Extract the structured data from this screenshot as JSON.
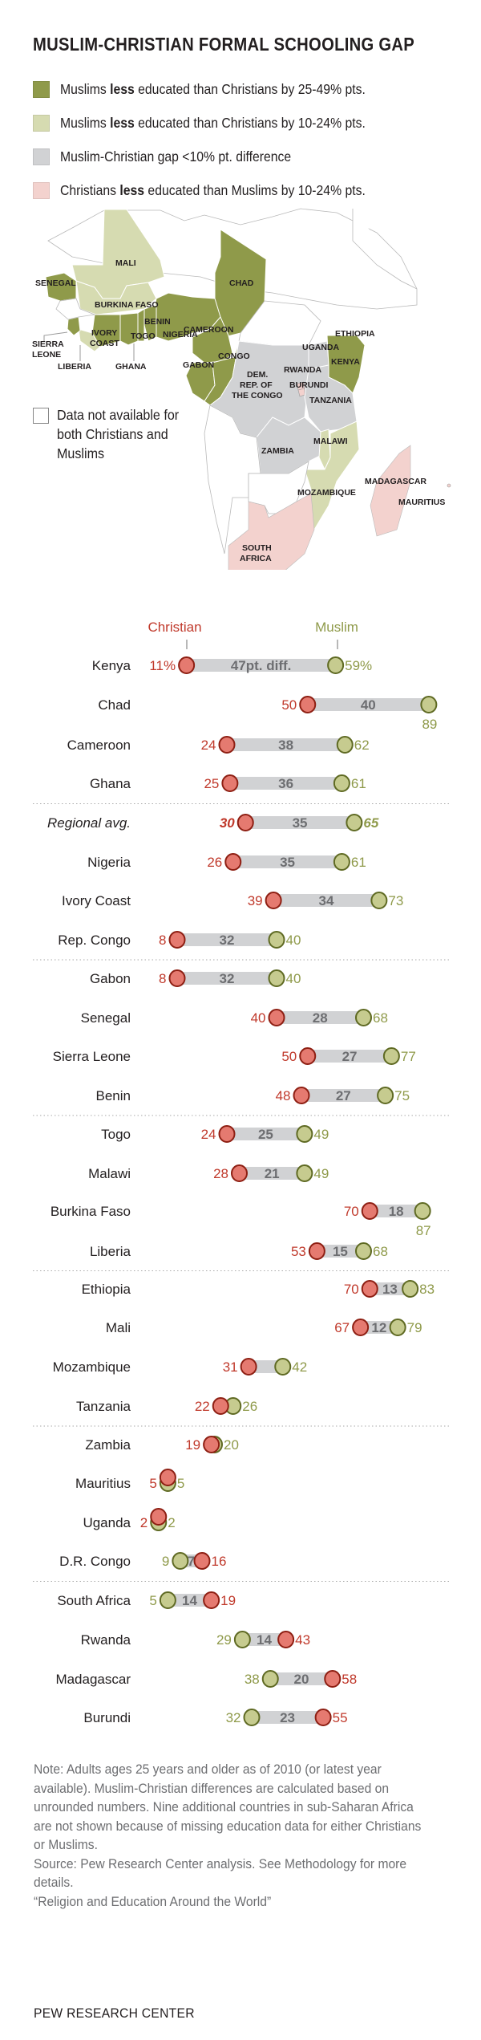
{
  "title": "MUSLIM-CHRISTIAN FORMAL SCHOOLING GAP",
  "colors": {
    "muslim_less_25_49": "#8f9a4a",
    "muslim_less_10_24": "#d6dbb1",
    "gap_under_10": "#d1d2d4",
    "christian_less_10_24": "#f3d2ce",
    "no_data": "#ffffff",
    "christian_dot_fill": "#e57a70",
    "christian_dot_stroke": "#8e1f13",
    "christian_text": "#c0392b",
    "muslim_dot_fill": "#c6cb8f",
    "muslim_dot_stroke": "#5f6a23",
    "muslim_text": "#8f9a4a",
    "bar": "#d1d2d4",
    "diff_text": "#6d6e71"
  },
  "legend": [
    {
      "pre": "Muslims ",
      "bold": "less",
      "post": " educated than Christians by 25-49% pts.",
      "color_key": "muslim_less_25_49"
    },
    {
      "pre": "Muslims ",
      "bold": "less",
      "post": " educated than Christians by 10-24% pts.",
      "color_key": "muslim_less_10_24"
    },
    {
      "pre": "Muslim-Christian gap <10% pt. difference",
      "bold": "",
      "post": "",
      "color_key": "gap_under_10"
    },
    {
      "pre": "Christians ",
      "bold": "less",
      "post": " educated than Muslims by 10-24% pts.",
      "color_key": "christian_less_10_24"
    }
  ],
  "no_data_legend": "Data not available for both Christians and Muslims",
  "map_labels": {
    "mali": "MALI",
    "senegal": "SENEGAL",
    "chad": "CHAD",
    "burkina_faso": "BURKINA FASO",
    "benin": "BENIN",
    "ivory": "IVORY",
    "coast": "COAST",
    "togo": "TOGO",
    "nigeria": "NIGERIA",
    "ethiopia": "ETHIOPIA",
    "sierra": "SIERRA",
    "leone": "LEONE",
    "liberia": "LIBERIA",
    "ghana": "GHANA",
    "cameroon": "CAMEROON",
    "congo": "CONGO",
    "gabon": "GABON",
    "uganda": "UGANDA",
    "kenya": "KENYA",
    "dem": "DEM.",
    "rep_of": "REP. OF",
    "the_congo": "THE CONGO",
    "rwanda": "RWANDA",
    "burundi": "BURUNDI",
    "tanzania": "TANZANIA",
    "zambia": "ZAMBIA",
    "malawi": "MALAWI",
    "mozambique": "MOZAMBIQUE",
    "madagascar": "MADAGASCAR",
    "mauritius": "MAURITIUS",
    "south": "SOUTH",
    "africa": "AFRICA"
  },
  "chart_data": {
    "type": "dot",
    "title": "MUSLIM-CHRISTIAN FORMAL SCHOOLING GAP",
    "series_labels": {
      "christian": "Christian",
      "muslim": "Muslim"
    },
    "value_unit": "% of adults with formal schooling",
    "xlim": [
      0,
      100
    ],
    "diff_suffix_first": "pt. diff.",
    "rows": [
      {
        "country": "Kenya",
        "christian": 11,
        "muslim": 59,
        "diff": 47,
        "first": true
      },
      {
        "country": "Chad",
        "christian": 50,
        "muslim": 89,
        "diff": 40,
        "muslim_label_below": true
      },
      {
        "country": "Cameroon",
        "christian": 24,
        "muslim": 62,
        "diff": 38
      },
      {
        "country": "Ghana",
        "christian": 25,
        "muslim": 61,
        "diff": 36,
        "divider_after": true
      },
      {
        "country": "Regional avg.",
        "christian": 30,
        "muslim": 65,
        "diff": 35,
        "italic": true
      },
      {
        "country": "Nigeria",
        "christian": 26,
        "muslim": 61,
        "diff": 35
      },
      {
        "country": "Ivory Coast",
        "christian": 39,
        "muslim": 73,
        "diff": 34
      },
      {
        "country": "Rep. Congo",
        "christian": 8,
        "muslim": 40,
        "diff": 32,
        "divider_after": true
      },
      {
        "country": "Gabon",
        "christian": 8,
        "muslim": 40,
        "diff": 32
      },
      {
        "country": "Senegal",
        "christian": 40,
        "muslim": 68,
        "diff": 28
      },
      {
        "country": "Sierra Leone",
        "christian": 50,
        "muslim": 77,
        "diff": 27
      },
      {
        "country": "Benin",
        "christian": 48,
        "muslim": 75,
        "diff": 27,
        "divider_after": true
      },
      {
        "country": "Togo",
        "christian": 24,
        "muslim": 49,
        "diff": 25
      },
      {
        "country": "Malawi",
        "christian": 28,
        "muslim": 49,
        "diff": 21
      },
      {
        "country": "Burkina Faso",
        "christian": 70,
        "muslim": 87,
        "diff": 18,
        "muslim_label_below": true
      },
      {
        "country": "Liberia",
        "christian": 53,
        "muslim": 68,
        "diff": 15,
        "divider_after": true
      },
      {
        "country": "Ethiopia",
        "christian": 70,
        "muslim": 83,
        "diff": 13
      },
      {
        "country": "Mali",
        "christian": 67,
        "muslim": 79,
        "diff": 12
      },
      {
        "country": "Mozambique",
        "christian": 31,
        "muslim": 42,
        "diff": null
      },
      {
        "country": "Tanzania",
        "christian": 22,
        "muslim": 26,
        "diff": null,
        "divider_after": true
      },
      {
        "country": "Zambia",
        "christian": 19,
        "muslim": 20,
        "diff": null
      },
      {
        "country": "Mauritius",
        "christian": 5,
        "muslim": 5,
        "diff": null,
        "stacked": true
      },
      {
        "country": "Uganda",
        "christian": 2,
        "muslim": 2,
        "diff": null,
        "stacked": true
      },
      {
        "country": "D.R. Congo",
        "christian": 16,
        "muslim": 9,
        "diff": 7,
        "divider_after": true
      },
      {
        "country": "South Africa",
        "christian": 19,
        "muslim": 5,
        "diff": 14
      },
      {
        "country": "Rwanda",
        "christian": 43,
        "muslim": 29,
        "diff": 14
      },
      {
        "country": "Madagascar",
        "christian": 58,
        "muslim": 38,
        "diff": 20
      },
      {
        "country": "Burundi",
        "christian": 55,
        "muslim": 32,
        "diff": 23
      }
    ]
  },
  "notes": {
    "note": "Note: Adults ages 25 years and older as of 2010 (or latest year available). Muslim-Christian differences are calculated based on unrounded numbers. Nine additional countries in sub-Saharan Africa are not shown because of missing education data for either Christians or Muslims.",
    "source": "Source: Pew Research Center analysis. See Methodology for more details.",
    "report": "“Religion and Education Around the World”"
  },
  "brand": "PEW RESEARCH CENTER"
}
